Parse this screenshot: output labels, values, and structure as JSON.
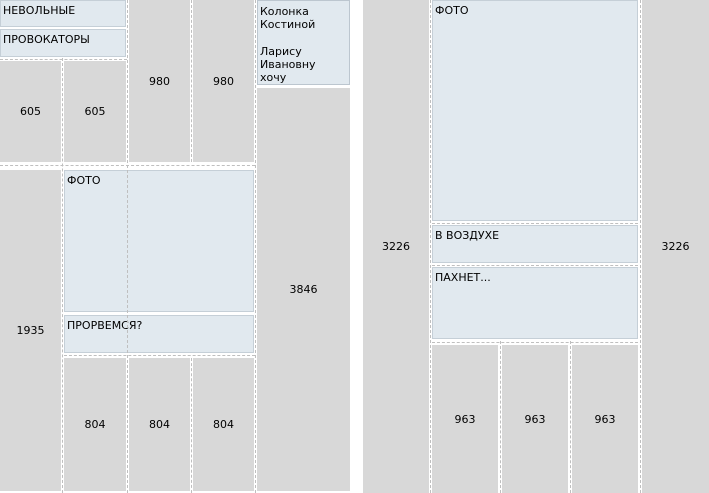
{
  "left_page": {
    "header_boxes": [
      "НЕВОЛЬНЫЕ",
      "ПРОВОКАТОРЫ"
    ],
    "kostina": {
      "line1": "Колонка",
      "line2": "Костиной",
      "line3": "Ларису Ивановну",
      "line4": "хочу"
    },
    "cells": {
      "c605a": "605",
      "c605b": "605",
      "c980a": "980",
      "c980b": "980",
      "c1935": "1935",
      "c3846": "3846",
      "c804a": "804",
      "c804b": "804",
      "c804c": "804"
    },
    "photo_label": "ФОТО",
    "caption": "ПРОРВЕМСЯ?"
  },
  "right_page": {
    "c3226a": "3226",
    "c3226b": "3226",
    "photo_label": "ФОТО",
    "v_vozduhe": "В ВОЗДУХЕ",
    "pahnet": "ПАХНЕТ...",
    "c963a": "963",
    "c963b": "963",
    "c963c": "963"
  }
}
